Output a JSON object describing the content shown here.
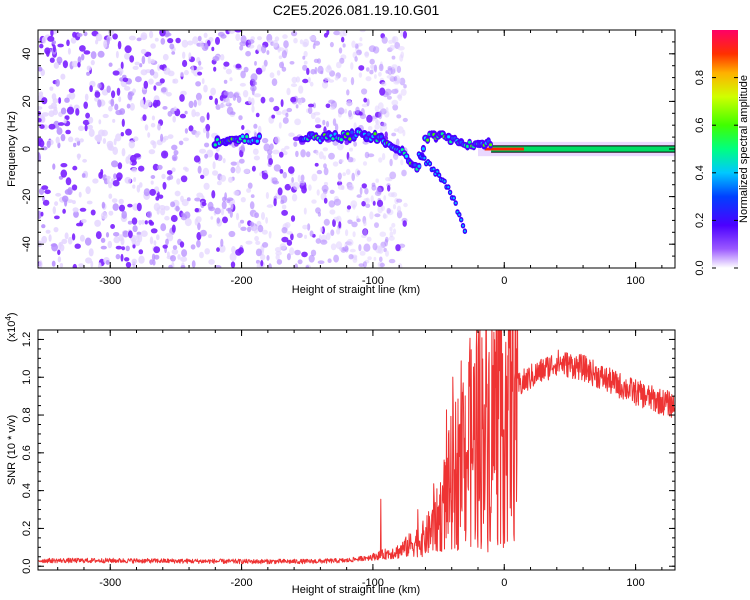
{
  "title": "C2E5.2026.081.19.10.G01",
  "colors": {
    "snr_line": "#ee3333",
    "scatter": "#7a1fff",
    "axis": "#000000"
  },
  "chart_data": [
    {
      "type": "heatmap",
      "name": "spectrogram",
      "xlabel": "Height of straight line (km)",
      "ylabel": "Frequency (Hz)",
      "xlim": [
        -355,
        130
      ],
      "ylim": [
        -50,
        50
      ],
      "xticks": [
        -300,
        -200,
        -100,
        0,
        100
      ],
      "yticks": [
        -40,
        -20,
        0,
        20,
        40
      ],
      "xtick_labels": [
        "-300",
        "-200",
        "-100",
        "0",
        "100"
      ],
      "ytick_labels": [
        "-40",
        "-20",
        "0",
        "20",
        "40"
      ],
      "noise_region_x": [
        -355,
        -100
      ],
      "signal_ridge": [
        {
          "x": -220,
          "y": 3
        },
        {
          "x": -210,
          "y": 4
        },
        {
          "x": -200,
          "y": 5
        },
        {
          "x": -190,
          "y": 4
        },
        {
          "x": -150,
          "y": 5
        },
        {
          "x": -130,
          "y": 5
        },
        {
          "x": -110,
          "y": 6
        },
        {
          "x": -95,
          "y": 5
        },
        {
          "x": -85,
          "y": 2
        },
        {
          "x": -75,
          "y": -3
        },
        {
          "x": -65,
          "y": -8
        },
        {
          "x": -60,
          "y": 5
        },
        {
          "x": -50,
          "y": 6
        },
        {
          "x": -40,
          "y": 4
        },
        {
          "x": -30,
          "y": 2
        },
        {
          "x": -20,
          "y": 1
        },
        {
          "x": -10,
          "y": 2
        },
        {
          "x": 0,
          "y": 1
        },
        {
          "x": 20,
          "y": 0
        },
        {
          "x": 60,
          "y": 0
        },
        {
          "x": 130,
          "y": 0
        }
      ],
      "secondary_branch": [
        {
          "x": -65,
          "y": -2
        },
        {
          "x": -55,
          "y": -8
        },
        {
          "x": -45,
          "y": -14
        },
        {
          "x": -38,
          "y": -22
        },
        {
          "x": -30,
          "y": -35
        }
      ],
      "colorbar": {
        "label": "Normalized spectral amplitude",
        "range": [
          0,
          1
        ],
        "ticks": [
          "0.0",
          "0.2",
          "0.4",
          "0.6",
          "0.8"
        ],
        "tick_values": [
          0,
          0.2,
          0.4,
          0.6,
          0.8
        ]
      }
    },
    {
      "type": "line",
      "name": "snr",
      "xlabel": "Height of straight line (km)",
      "ylabel": "SNR (10 * v/v)",
      "exponent_label_prefix": "(x10",
      "exponent_value": "4",
      "exponent_label_suffix": ")",
      "xlim": [
        -355,
        130
      ],
      "ylim": [
        -0.02,
        1.25
      ],
      "xticks": [
        -300,
        -200,
        -100,
        0,
        100
      ],
      "yticks": [
        0.0,
        0.2,
        0.4,
        0.6,
        0.8,
        1.0,
        1.2
      ],
      "xtick_labels": [
        "-300",
        "-200",
        "-100",
        "0",
        "100"
      ],
      "ytick_labels": [
        "0.0",
        "0.2",
        "0.4",
        "0.6",
        "0.8",
        "1.0",
        "1.2"
      ],
      "envelope": [
        {
          "x": -355,
          "y": 0.03
        },
        {
          "x": -300,
          "y": 0.03
        },
        {
          "x": -200,
          "y": 0.025
        },
        {
          "x": -150,
          "y": 0.025
        },
        {
          "x": -120,
          "y": 0.03
        },
        {
          "x": -100,
          "y": 0.05
        },
        {
          "x": -80,
          "y": 0.08
        },
        {
          "x": -70,
          "y": 0.12
        },
        {
          "x": -60,
          "y": 0.15
        },
        {
          "x": -50,
          "y": 0.25
        },
        {
          "x": -40,
          "y": 0.45
        },
        {
          "x": -30,
          "y": 0.6
        },
        {
          "x": -20,
          "y": 0.7
        },
        {
          "x": -10,
          "y": 0.75
        },
        {
          "x": 0,
          "y": 0.85
        },
        {
          "x": 10,
          "y": 0.95
        },
        {
          "x": 20,
          "y": 1.0
        },
        {
          "x": 40,
          "y": 1.08
        },
        {
          "x": 60,
          "y": 1.05
        },
        {
          "x": 80,
          "y": 0.98
        },
        {
          "x": 100,
          "y": 0.92
        },
        {
          "x": 115,
          "y": 0.88
        },
        {
          "x": 130,
          "y": 0.85
        }
      ]
    }
  ]
}
